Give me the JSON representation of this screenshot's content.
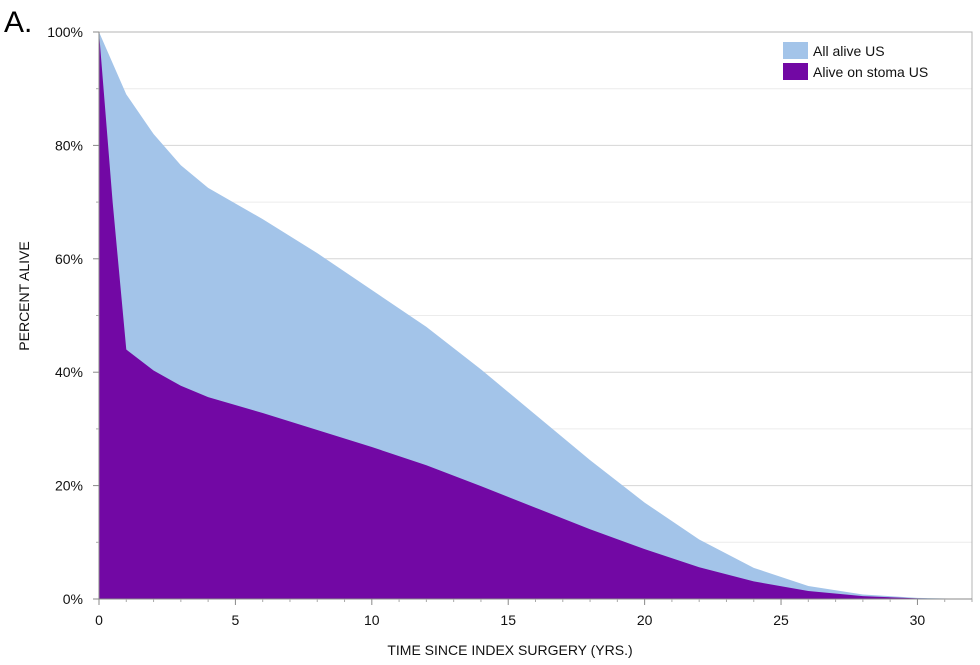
{
  "panel_label": "A.",
  "chart_data": {
    "type": "area",
    "title": "",
    "xlabel": "TIME SINCE INDEX SURGERY (YRS.)",
    "ylabel": "PERCENT ALIVE",
    "xlim": [
      0,
      32
    ],
    "ylim": [
      0,
      100
    ],
    "xticks": [
      0,
      5,
      10,
      15,
      20,
      25,
      30
    ],
    "yticks": [
      0,
      20,
      40,
      60,
      80,
      100
    ],
    "ytick_labels": [
      "0%",
      "20%",
      "40%",
      "60%",
      "80%",
      "100%"
    ],
    "grid": true,
    "legend_position": "top-right",
    "series": [
      {
        "name": "All alive US",
        "color": "#a3c4e9",
        "x": [
          0,
          1,
          2,
          3,
          4,
          6,
          8,
          10,
          12,
          14,
          16,
          18,
          20,
          22,
          24,
          26,
          28,
          30,
          32
        ],
        "values": [
          100,
          89,
          82,
          76.5,
          72.5,
          67,
          61,
          54.5,
          48,
          40.5,
          32.5,
          24.5,
          17,
          10.5,
          5.5,
          2.3,
          0.8,
          0.2,
          0
        ]
      },
      {
        "name": "Alive on stoma US",
        "color": "#7208a4",
        "x": [
          0,
          0.5,
          1,
          2,
          3,
          4,
          6,
          8,
          10,
          12,
          14,
          16,
          18,
          20,
          22,
          24,
          26,
          28,
          30,
          32
        ],
        "values": [
          100,
          70,
          44,
          40.3,
          37.6,
          35.6,
          32.8,
          29.8,
          26.8,
          23.6,
          19.9,
          16.1,
          12.3,
          8.8,
          5.6,
          3.1,
          1.4,
          0.5,
          0.1,
          0
        ]
      }
    ]
  }
}
